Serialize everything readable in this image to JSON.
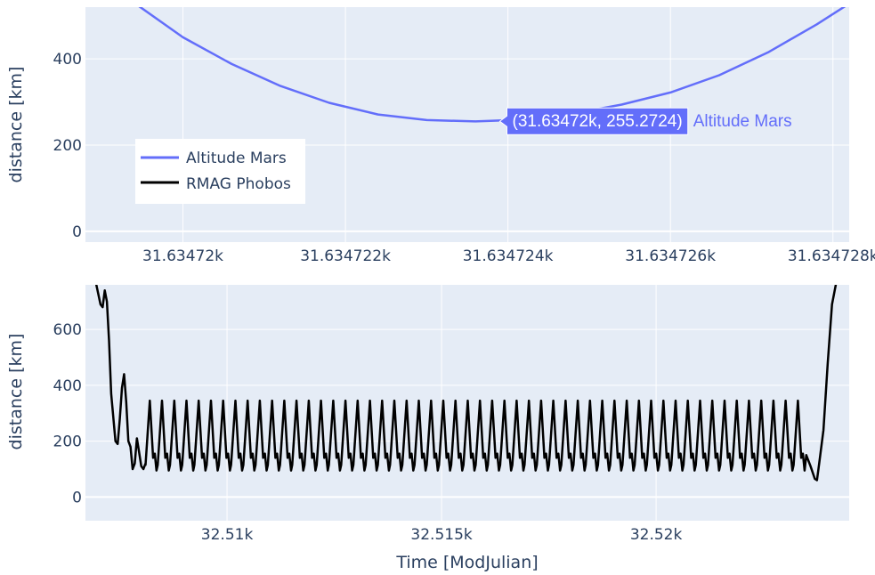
{
  "colors": {
    "plot_bg": "#e5ecf6",
    "grid": "#ffffff",
    "text": "#2a3f5f",
    "altitude_mars": "#636efa",
    "rmag_phobos": "#000000"
  },
  "legend": {
    "entries": [
      {
        "name": "Altitude Mars",
        "color": "#636efa"
      },
      {
        "name": "RMAG Phobos",
        "color": "#000000"
      }
    ],
    "placement": "bottom-left of top subplot"
  },
  "chart_data": [
    {
      "type": "line",
      "subplot": "top",
      "ylabel": "distance [km]",
      "xlabel": "",
      "xlim": [
        31.6347188,
        31.6347282
      ],
      "ylim": [
        -25,
        520
      ],
      "x_ticks": [
        {
          "value": 31.63472,
          "label": "31.63472k"
        },
        {
          "value": 31.634722,
          "label": "31.634722k"
        },
        {
          "value": 31.634724,
          "label": "31.634724k"
        },
        {
          "value": 31.634726,
          "label": "31.634726k"
        },
        {
          "value": 31.634728,
          "label": "31.634728k"
        }
      ],
      "y_ticks": [
        {
          "value": 0,
          "label": "0"
        },
        {
          "value": 200,
          "label": "200"
        },
        {
          "value": 400,
          "label": "400"
        }
      ],
      "grid": true,
      "series": [
        {
          "name": "Altitude Mars",
          "color": "#636efa",
          "x": [
            31.6347194,
            31.63472,
            31.6347206,
            31.6347212,
            31.6347218,
            31.6347224,
            31.634723,
            31.6347236,
            31.6347242,
            31.6347248,
            31.6347254,
            31.634726,
            31.6347266,
            31.6347272,
            31.6347278,
            31.6347282
          ],
          "y": [
            530,
            450,
            388,
            337,
            298,
            271,
            258,
            255,
            259,
            273,
            294,
            322,
            362,
            415,
            480,
            528
          ]
        }
      ],
      "hover": {
        "text": "(31.63472k, 255.2724)",
        "series_name": "Altitude Mars",
        "x": 31.6347239,
        "y": 255.2724
      }
    },
    {
      "type": "line",
      "subplot": "bottom",
      "ylabel": "distance [km]",
      "xlabel": "Time [ModJulian]",
      "xlim": [
        32.5067,
        32.5245
      ],
      "ylim": [
        -85,
        760
      ],
      "x_ticks": [
        {
          "value": 32.51,
          "label": "32.51k"
        },
        {
          "value": 32.515,
          "label": "32.515k"
        },
        {
          "value": 32.52,
          "label": "32.52k"
        }
      ],
      "y_ticks": [
        {
          "value": 0,
          "label": "0"
        },
        {
          "value": 200,
          "label": "200"
        },
        {
          "value": 400,
          "label": "400"
        },
        {
          "value": 600,
          "label": "600"
        }
      ],
      "grid": true,
      "series": [
        {
          "name": "RMAG Phobos",
          "color": "#000000",
          "x": [
            32.5066,
            32.5069,
            32.50705,
            32.5071,
            32.50715,
            32.5072,
            32.50725,
            32.5073,
            32.5074,
            32.50745,
            32.5075,
            32.50755,
            32.5076,
            32.50765,
            32.5077,
            32.50775,
            32.5078,
            32.50785,
            32.5079,
            32.50795,
            32.508,
            32.50805,
            32.5081
          ],
          "y": [
            900,
            800,
            690,
            680,
            740,
            700,
            560,
            370,
            200,
            190,
            280,
            390,
            440,
            340,
            200,
            180,
            100,
            120,
            210,
            160,
            110,
            100,
            120
          ],
          "oscillation": {
            "start": 32.5081,
            "end": 32.5235,
            "period": 0.000285,
            "peak": 345,
            "low_a": 140,
            "mid": 155,
            "low_b": 95
          },
          "x_tail": [
            32.5235,
            32.5236,
            32.5237,
            32.52375,
            32.5238,
            32.5239,
            32.524,
            32.5241,
            32.5243
          ],
          "y_tail": [
            150,
            110,
            65,
            60,
            120,
            240,
            480,
            690,
            850
          ]
        }
      ]
    }
  ]
}
